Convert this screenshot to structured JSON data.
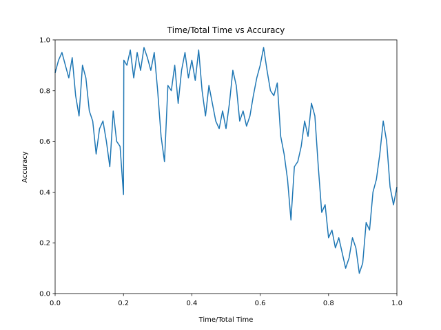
{
  "chart_data": {
    "type": "line",
    "title": "Time/Total Time vs Accuracy",
    "xlabel": "Time/Total Time",
    "ylabel": "Accuracy",
    "color": "#1f77b4",
    "x": [
      0,
      0.01,
      0.02,
      0.03,
      0.04,
      0.05,
      0.06,
      0.07,
      0.08,
      0.09,
      0.1,
      0.11,
      0.12,
      0.13,
      0.14,
      0.15,
      0.16,
      0.17,
      0.18,
      0.19,
      0.2,
      0.201,
      0.21,
      0.22,
      0.23,
      0.24,
      0.25,
      0.26,
      0.27,
      0.28,
      0.29,
      0.3,
      0.31,
      0.32,
      0.33,
      0.34,
      0.35,
      0.36,
      0.37,
      0.38,
      0.39,
      0.4,
      0.41,
      0.42,
      0.43,
      0.44,
      0.45,
      0.46,
      0.47,
      0.48,
      0.49,
      0.5,
      0.51,
      0.52,
      0.53,
      0.54,
      0.55,
      0.56,
      0.57,
      0.58,
      0.59,
      0.6,
      0.61,
      0.62,
      0.63,
      0.64,
      0.65,
      0.66,
      0.67,
      0.68,
      0.69,
      0.7,
      0.71,
      0.72,
      0.73,
      0.74,
      0.75,
      0.76,
      0.77,
      0.78,
      0.79,
      0.8,
      0.81,
      0.82,
      0.83,
      0.84,
      0.85,
      0.86,
      0.87,
      0.88,
      0.89,
      0.9,
      0.91,
      0.92,
      0.93,
      0.94,
      0.95,
      0.96,
      0.97,
      0.98,
      0.99,
      1
    ],
    "values": [
      0.87,
      0.92,
      0.95,
      0.9,
      0.85,
      0.93,
      0.78,
      0.7,
      0.9,
      0.85,
      0.72,
      0.68,
      0.55,
      0.65,
      0.68,
      0.6,
      0.5,
      0.72,
      0.6,
      0.58,
      0.39,
      0.92,
      0.9,
      0.96,
      0.85,
      0.95,
      0.88,
      0.97,
      0.93,
      0.88,
      0.95,
      0.8,
      0.62,
      0.52,
      0.82,
      0.8,
      0.9,
      0.75,
      0.88,
      0.95,
      0.85,
      0.92,
      0.84,
      0.96,
      0.8,
      0.7,
      0.82,
      0.75,
      0.68,
      0.65,
      0.72,
      0.65,
      0.75,
      0.88,
      0.82,
      0.68,
      0.72,
      0.66,
      0.7,
      0.78,
      0.85,
      0.9,
      0.97,
      0.88,
      0.8,
      0.78,
      0.83,
      0.62,
      0.55,
      0.45,
      0.29,
      0.5,
      0.52,
      0.58,
      0.68,
      0.62,
      0.75,
      0.7,
      0.5,
      0.32,
      0.35,
      0.22,
      0.25,
      0.18,
      0.22,
      0.16,
      0.1,
      0.14,
      0.22,
      0.18,
      0.08,
      0.12,
      0.28,
      0.25,
      0.4,
      0.45,
      0.55,
      0.68,
      0.6,
      0.42,
      0.35,
      0.42
    ],
    "xlim": [
      0,
      1
    ],
    "ylim": [
      0,
      1
    ],
    "xticks": [
      {
        "value": 0,
        "label": "0.0"
      },
      0.2,
      0.4,
      0.6,
      0.8,
      {
        "value": 1,
        "label": "1.0"
      }
    ],
    "yticks": [
      {
        "value": 0,
        "label": "0.0"
      },
      0.2,
      0.4,
      0.6,
      0.8,
      {
        "value": 1,
        "label": "1.0"
      }
    ]
  }
}
